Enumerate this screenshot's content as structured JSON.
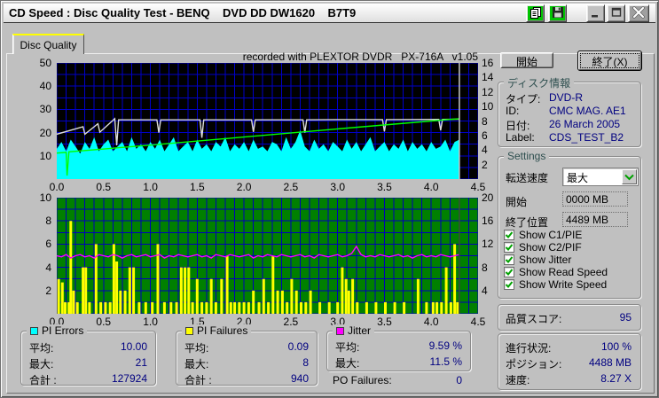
{
  "titlebar": {
    "title": "CD Speed : Disc Quality Test - BENQ    DVD DD DW1620    B7T9",
    "icons": [
      "copy-icon",
      "save-icon",
      "minimize-icon",
      "maximize-icon",
      "close-icon"
    ]
  },
  "tab": "Disc Quality",
  "recorded_note": "recorded with PLEXTOR DVDR   PX-716A   v1.05",
  "chart_data": [
    {
      "type": "area",
      "name": "pi-errors-speed-chart",
      "bg": "#000000",
      "grid_color": "#0000C8",
      "x_range": [
        0,
        4.5
      ],
      "x_grid_step": 0.1,
      "x_ticks": [
        "0.0",
        "0.5",
        "1.0",
        "1.5",
        "2.0",
        "2.5",
        "3.0",
        "3.5",
        "4.0",
        "4.5"
      ],
      "y_left": {
        "max": 50,
        "grid_step": 5,
        "ticks": [
          50,
          40,
          30,
          20,
          10
        ]
      },
      "y_right": {
        "max": 16,
        "ticks": [
          16,
          14,
          12,
          10,
          8,
          6,
          4,
          2
        ]
      },
      "end_marker": {
        "x": 4.3,
        "color": "#C8C8C8"
      },
      "series": [
        {
          "name": "PI Errors",
          "type": "area",
          "color": "#00FFFF",
          "x_step": 0.05,
          "values": [
            13,
            16,
            12,
            17,
            14,
            11,
            16,
            13,
            18,
            12,
            15,
            17,
            12,
            14,
            16,
            12,
            18,
            13,
            15,
            12,
            16,
            13,
            17,
            12,
            15,
            18,
            12,
            14,
            16,
            12,
            17,
            13,
            15,
            12,
            16,
            14,
            18,
            12,
            15,
            13,
            16,
            12,
            17,
            13,
            14,
            12,
            16,
            15,
            12,
            18,
            13,
            16,
            21,
            14,
            12,
            17,
            13,
            15,
            12,
            16,
            14,
            12,
            17,
            13,
            16,
            12,
            15,
            18,
            12,
            14,
            16,
            12,
            15,
            13,
            17,
            12,
            16,
            13,
            15,
            12,
            16,
            13,
            14,
            17,
            12,
            16,
            17
          ]
        },
        {
          "name": "Read Speed",
          "type": "line",
          "color": "#DCDCDC",
          "points": [
            [
              0,
              19.3
            ],
            [
              0.28,
              22.5
            ],
            [
              0.3,
              19.3
            ],
            [
              0.44,
              23.8
            ],
            [
              0.46,
              20.2
            ],
            [
              0.62,
              26.0
            ],
            [
              0.64,
              14.5
            ],
            [
              0.66,
              25.5
            ],
            [
              1.07,
              25.5
            ],
            [
              1.09,
              20.0
            ],
            [
              1.11,
              25.5
            ],
            [
              1.53,
              25.5
            ],
            [
              1.55,
              17.8
            ],
            [
              1.57,
              25.5
            ],
            [
              2.08,
              25.5
            ],
            [
              2.1,
              20.3
            ],
            [
              2.12,
              25.5
            ],
            [
              2.63,
              25.5
            ],
            [
              2.65,
              20.0
            ],
            [
              2.67,
              25.5
            ],
            [
              3.1,
              25.6
            ],
            [
              3.48,
              25.6
            ],
            [
              3.5,
              20.5
            ],
            [
              3.52,
              25.6
            ],
            [
              4.08,
              25.7
            ],
            [
              4.1,
              21.0
            ],
            [
              4.12,
              25.7
            ],
            [
              4.3,
              25.8
            ]
          ]
        },
        {
          "name": "Write Speed",
          "type": "line",
          "color": "#00FF00",
          "points": [
            [
              0,
              11.2
            ],
            [
              0.1,
              11.5
            ],
            [
              0.11,
              1.5
            ],
            [
              0.13,
              11.7
            ],
            [
              1.0,
              14.6
            ],
            [
              2.0,
              18.1
            ],
            [
              3.0,
              21.6
            ],
            [
              4.0,
              25.0
            ],
            [
              4.3,
              26.0
            ]
          ]
        }
      ]
    },
    {
      "type": "bar",
      "name": "pi-failures-jitter-chart",
      "bg": "#008000",
      "grid_color": "#0000B8",
      "x_range": [
        0,
        4.5
      ],
      "x_grid_step": 0.1,
      "x_ticks": [
        "0.0",
        "0.5",
        "1.0",
        "1.5",
        "2.0",
        "2.5",
        "3.0",
        "3.5",
        "4.0",
        "4.5"
      ],
      "y_left": {
        "max": 10,
        "grid_step": 1,
        "ticks": [
          10,
          8,
          6,
          4,
          2
        ]
      },
      "y_right": {
        "max": 20,
        "ticks": [
          20,
          16,
          12,
          8,
          4
        ]
      },
      "end_marker": {
        "x": 4.3,
        "color": "#3A4A3A"
      },
      "series": [
        {
          "name": "PI Failures",
          "type": "bar",
          "color": "#FFFF00",
          "bars": [
            [
              0.02,
              3
            ],
            [
              0.06,
              2.7
            ],
            [
              0.09,
              1
            ],
            [
              0.13,
              1
            ],
            [
              0.15,
              8
            ],
            [
              0.18,
              2
            ],
            [
              0.22,
              1
            ],
            [
              0.28,
              4
            ],
            [
              0.31,
              4
            ],
            [
              0.35,
              1
            ],
            [
              0.42,
              6
            ],
            [
              0.47,
              1
            ],
            [
              0.52,
              1
            ],
            [
              0.57,
              1
            ],
            [
              0.61,
              6
            ],
            [
              0.64,
              4.5
            ],
            [
              0.68,
              2
            ],
            [
              0.73,
              2
            ],
            [
              0.78,
              4
            ],
            [
              0.82,
              4
            ],
            [
              0.88,
              1
            ],
            [
              0.95,
              1
            ],
            [
              1.02,
              1
            ],
            [
              1.08,
              6
            ],
            [
              1.15,
              1
            ],
            [
              1.22,
              1
            ],
            [
              1.28,
              1
            ],
            [
              1.33,
              4
            ],
            [
              1.37,
              4
            ],
            [
              1.41,
              4
            ],
            [
              1.45,
              1
            ],
            [
              1.5,
              3
            ],
            [
              1.55,
              1
            ],
            [
              1.6,
              1
            ],
            [
              1.65,
              3
            ],
            [
              1.7,
              1
            ],
            [
              1.76,
              3
            ],
            [
              1.82,
              5
            ],
            [
              1.86,
              1
            ],
            [
              1.9,
              1
            ],
            [
              1.95,
              1
            ],
            [
              2.0,
              1
            ],
            [
              2.05,
              1
            ],
            [
              2.1,
              2
            ],
            [
              2.16,
              1
            ],
            [
              2.21,
              3
            ],
            [
              2.26,
              1
            ],
            [
              2.31,
              5
            ],
            [
              2.36,
              2
            ],
            [
              2.41,
              2
            ],
            [
              2.46,
              1
            ],
            [
              2.51,
              3
            ],
            [
              2.56,
              2
            ],
            [
              2.61,
              1
            ],
            [
              2.66,
              1
            ],
            [
              2.71,
              2
            ],
            [
              2.81,
              1
            ],
            [
              2.91,
              1
            ],
            [
              3.0,
              1
            ],
            [
              3.05,
              4
            ],
            [
              3.09,
              3
            ],
            [
              3.12,
              2
            ],
            [
              3.16,
              3
            ],
            [
              3.21,
              1
            ],
            [
              3.31,
              1
            ],
            [
              3.41,
              1
            ],
            [
              3.51,
              1
            ],
            [
              3.61,
              1
            ],
            [
              3.71,
              1
            ],
            [
              3.86,
              3
            ],
            [
              3.95,
              1
            ],
            [
              4.02,
              1
            ],
            [
              4.06,
              1
            ],
            [
              4.11,
              1
            ],
            [
              4.16,
              4
            ],
            [
              4.21,
              1
            ],
            [
              4.25,
              6
            ],
            [
              4.28,
              1
            ]
          ]
        },
        {
          "name": "Jitter",
          "type": "line",
          "color": "#FF00FF",
          "x_step": 0.05,
          "values": [
            5.0,
            4.9,
            5.1,
            4.8,
            5.0,
            5.1,
            4.9,
            5.0,
            4.8,
            5.1,
            5.0,
            4.9,
            5.1,
            5.0,
            4.8,
            5.0,
            5.1,
            4.9,
            5.0,
            5.1,
            4.9,
            5.0,
            5.1,
            4.8,
            5.0,
            4.9,
            5.1,
            5.0,
            4.9,
            5.0,
            5.1,
            4.9,
            5.0,
            4.8,
            5.1,
            5.0,
            4.9,
            5.1,
            5.0,
            4.9,
            5.0,
            5.1,
            4.8,
            5.0,
            4.9,
            5.1,
            5.0,
            4.9,
            5.1,
            5.0,
            4.9,
            5.0,
            5.1,
            4.9,
            5.0,
            4.8,
            5.1,
            5.0,
            4.9,
            5.0,
            5.1,
            4.9,
            5.0,
            5.2,
            5.8,
            5.1,
            4.9,
            5.0,
            4.9,
            5.1,
            5.0,
            4.9,
            5.0,
            5.1,
            4.9,
            5.0,
            4.8,
            5.0,
            5.1,
            4.9,
            5.0,
            4.9,
            5.1,
            5.0,
            4.9,
            5.0,
            5.1
          ]
        }
      ]
    }
  ],
  "legend": {
    "pi_errors": {
      "title": "PI Errors",
      "color": "#00FFFF",
      "rows": [
        {
          "label": "平均:",
          "value": "10.00"
        },
        {
          "label": "最大:",
          "value": "21"
        },
        {
          "label": "合計 :",
          "value": "127924"
        }
      ]
    },
    "pi_failures": {
      "title": "PI Failures",
      "color": "#FFFF00",
      "rows": [
        {
          "label": "平均:",
          "value": "0.09"
        },
        {
          "label": "最大:",
          "value": "8"
        },
        {
          "label": "合計 :",
          "value": "940"
        }
      ]
    },
    "jitter": {
      "title": "Jitter",
      "color": "#FF00FF",
      "rows": [
        {
          "label": "平均:",
          "value": "9.59 %"
        },
        {
          "label": "最大:",
          "value": "11.5 %"
        }
      ]
    },
    "po_failures": {
      "label": "PO Failures:",
      "value": "0"
    }
  },
  "panel": {
    "start_button": "開始",
    "exit_button": "終了(X)",
    "disc_info": {
      "title": "ディスク情報",
      "rows": [
        {
          "label": "タイプ:",
          "value": "DVD-R"
        },
        {
          "label": "ID:",
          "value": "CMC MAG. AE1"
        },
        {
          "label": "日付:",
          "value": "26 March 2005"
        },
        {
          "label": "Label:",
          "value": "CDS_TEST_B2"
        }
      ]
    },
    "settings": {
      "title": "Settings",
      "speed_label": "転送速度",
      "speed_value": "最大",
      "start_label": "開始",
      "start_value": "0000 MB",
      "end_label": "終了位置",
      "end_value": "4489 MB",
      "checkboxes": [
        {
          "label": "Show C1/PIE",
          "checked": true
        },
        {
          "label": "Show C2/PIF",
          "checked": true
        },
        {
          "label": "Show Jitter",
          "checked": true
        },
        {
          "label": "Show Read Speed",
          "checked": true
        },
        {
          "label": "Show Write Speed",
          "checked": true
        }
      ]
    },
    "quality": {
      "label": "品質スコア:",
      "value": "95"
    },
    "progress": {
      "rows": [
        {
          "label": "進行状況:",
          "value": "100 %"
        },
        {
          "label": "ポジション:",
          "value": "4488 MB"
        },
        {
          "label": "速度:",
          "value": "8.27 X"
        }
      ]
    }
  },
  "colors": {
    "client_bg": "#C0C0C0",
    "value_text": "#000080",
    "tab_accent": "#FFFF00",
    "titlebar_button_green": "#00C400"
  }
}
